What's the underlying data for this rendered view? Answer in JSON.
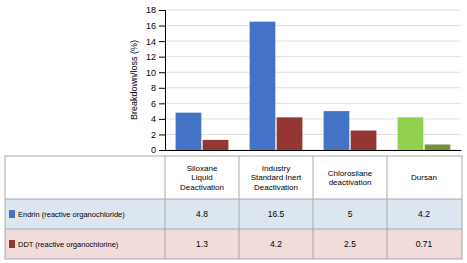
{
  "chart_data": {
    "type": "bar",
    "categories": [
      "Siloxane\nLiquid\nDeactivation",
      "Industry\nStandard Inert\nDeactivation",
      "Chlorosilane\ndeactivation",
      "Dursan"
    ],
    "series": [
      {
        "name": "Endrin (reactive organochloride)",
        "color": "#4472c4",
        "colors": [
          "#4472c4",
          "#4472c4",
          "#4472c4",
          "#92d050"
        ],
        "values": [
          4.8,
          16.5,
          5,
          4.2
        ]
      },
      {
        "name": "DDT (reactive organochlorine)",
        "color": "#943634",
        "colors": [
          "#943634",
          "#943634",
          "#943634",
          "#76933c"
        ],
        "values": [
          1.3,
          4.2,
          2.5,
          0.71
        ]
      }
    ],
    "y_label": "Breakdown/loss (%)",
    "ylim": [
      0,
      18
    ],
    "yticks": [
      0,
      2,
      4,
      6,
      8,
      10,
      12,
      14,
      16,
      18
    ],
    "grid": true,
    "data_labels": true
  }
}
